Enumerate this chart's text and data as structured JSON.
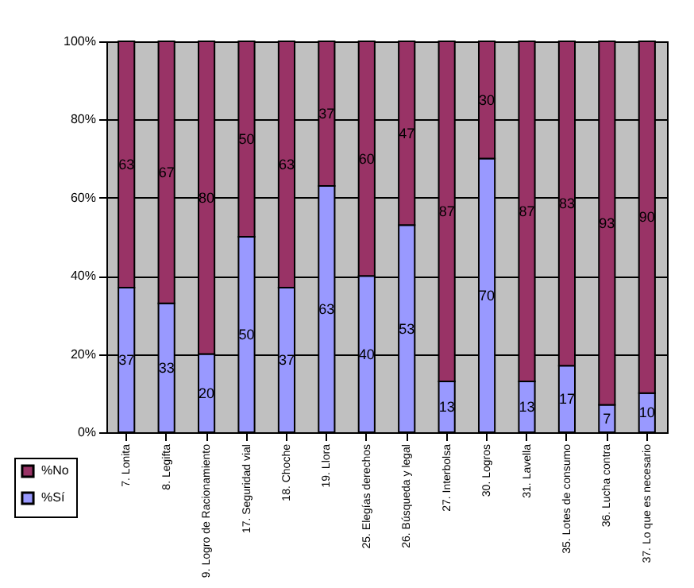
{
  "chart_data": {
    "type": "bar",
    "stacked": true,
    "categories": [
      "7. Lonita",
      "8. Legifta",
      "9. Logro de Racionamiento",
      "17. Seguridad vial",
      "18. Choche",
      "19. Llora",
      "25. Elegías derechos",
      "26. Búsqueda y legal",
      "27. Interbolsa",
      "30. Logros",
      "31. Lavella",
      "35. Lotes de consumo",
      "36. Lucha contra",
      "37. Lo que es necesario"
    ],
    "series": [
      {
        "name": "%Sí",
        "color": "#9999ff",
        "values": [
          37,
          33,
          20,
          50,
          37,
          63,
          40,
          53,
          13,
          70,
          13,
          17,
          7,
          10
        ]
      },
      {
        "name": "%No",
        "color": "#993366",
        "values": [
          63,
          67,
          80,
          50,
          63,
          37,
          60,
          47,
          87,
          30,
          87,
          83,
          93,
          90
        ]
      }
    ],
    "ylim": [
      0,
      100
    ],
    "yticks": [
      {
        "value": 0,
        "label": "0%"
      },
      {
        "value": 20,
        "label": "20%"
      },
      {
        "value": 40,
        "label": "40%"
      },
      {
        "value": 60,
        "label": "60%"
      },
      {
        "value": 80,
        "label": "80%"
      },
      {
        "value": 100,
        "label": "100%"
      }
    ],
    "grid": "y",
    "legend": "bottom left",
    "data_labels": true
  }
}
